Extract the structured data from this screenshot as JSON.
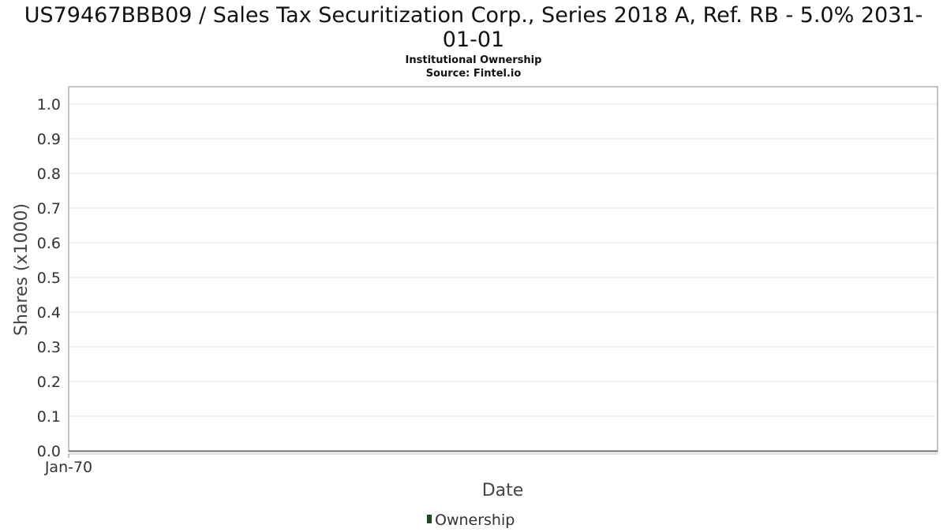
{
  "chart_data": {
    "type": "area",
    "title_lines": [
      "US79467BBB09 / Sales Tax Securitization Corp., Series 2018 A, Ref. RB - 5.0% 2031-",
      "01-01"
    ],
    "subtitle_lines": [
      "Institutional Ownership",
      "Source: Fintel.io"
    ],
    "xlabel": "Date",
    "ylabel": "Shares (x1000)",
    "ylim": [
      0.0,
      1.0
    ],
    "y_ticks": [
      "0.0",
      "0.1",
      "0.2",
      "0.3",
      "0.4",
      "0.5",
      "0.6",
      "0.7",
      "0.8",
      "0.9",
      "1.0"
    ],
    "x_ticks": [
      "Jan-70"
    ],
    "grid": true,
    "legend_position": "bottom-center",
    "series": [
      {
        "name": "Ownership",
        "color": "#1b4d1b",
        "x": [],
        "values": []
      }
    ]
  }
}
